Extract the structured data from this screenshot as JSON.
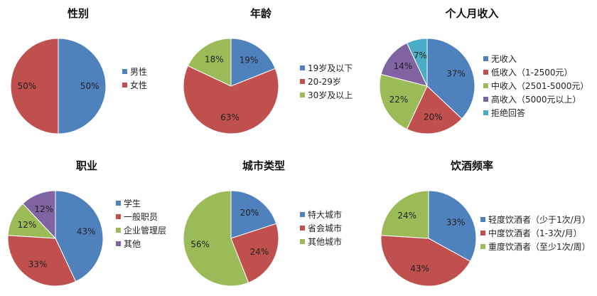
{
  "chart_data": [
    {
      "type": "pie",
      "title": "性别",
      "categories": [
        "男性",
        "女性"
      ],
      "values": [
        50,
        50
      ],
      "labels": [
        "50%",
        "50%"
      ],
      "colors": [
        "#4F81BD",
        "#C0504D"
      ],
      "legend": "right"
    },
    {
      "type": "pie",
      "title": "年龄",
      "categories": [
        "19岁及以下",
        "20-29岁",
        "30岁及以上"
      ],
      "values": [
        19,
        63,
        18
      ],
      "labels": [
        "19%",
        "63%",
        "18%"
      ],
      "colors": [
        "#4F81BD",
        "#C0504D",
        "#9BBB59"
      ],
      "legend": "right"
    },
    {
      "type": "pie",
      "title": "个人月收入",
      "categories": [
        "无收入",
        "低收入（1-2500元）",
        "中收入（2501-5000元）",
        "高收入（5000元以上）",
        "拒绝回答"
      ],
      "values": [
        37,
        20,
        22,
        14,
        7
      ],
      "labels": [
        "37%",
        "20%",
        "22%",
        "14%",
        "7%"
      ],
      "colors": [
        "#4F81BD",
        "#C0504D",
        "#9BBB59",
        "#8064A2",
        "#4BACC6"
      ],
      "legend": "right"
    },
    {
      "type": "pie",
      "title": "职业",
      "categories": [
        "学生",
        "一般职员",
        "企业管理层",
        "其他"
      ],
      "values": [
        43,
        33,
        12,
        12
      ],
      "labels": [
        "43%",
        "33%",
        "12%",
        "12%"
      ],
      "colors": [
        "#4F81BD",
        "#C0504D",
        "#9BBB59",
        "#8064A2"
      ],
      "legend": "right"
    },
    {
      "type": "pie",
      "title": "城市类型",
      "categories": [
        "特大城市",
        "省会城市",
        "其他城市"
      ],
      "values": [
        20,
        24,
        56
      ],
      "labels": [
        "20%",
        "24%",
        "56%"
      ],
      "colors": [
        "#4F81BD",
        "#C0504D",
        "#9BBB59"
      ],
      "legend": "right"
    },
    {
      "type": "pie",
      "title": "饮酒频率",
      "categories": [
        "轻度饮酒者（少于1次/月）",
        "中度饮酒者（1-3次/月）",
        "重度饮酒者（至少1次/周）"
      ],
      "values": [
        33,
        43,
        24
      ],
      "labels": [
        "33%",
        "43%",
        "24%"
      ],
      "colors": [
        "#4F81BD",
        "#C0504D",
        "#9BBB59"
      ],
      "legend": "right"
    }
  ]
}
